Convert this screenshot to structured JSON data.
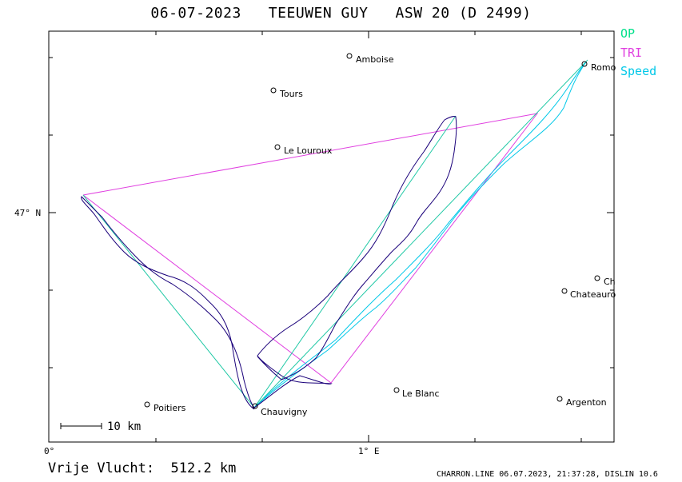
{
  "title": "06-07-2023   TEEUWEN GUY   ASW 20 (D 2499)",
  "legend": {
    "op": {
      "label": "OP",
      "color": "#00e08a"
    },
    "tri": {
      "label": "TRI",
      "color": "#e040e0"
    },
    "speed": {
      "label": "Speed",
      "color": "#00c8e8"
    }
  },
  "axes": {
    "x_labels": {
      "zero": "0°",
      "one_e": "1° E"
    },
    "y_labels": {
      "n47": "47° N"
    }
  },
  "scale_bar": {
    "label": "10 km"
  },
  "places": {
    "amboise": "Amboise",
    "tours": "Tours",
    "le_louroux": "Le Louroux",
    "romo": "Romo",
    "ch": "Ch",
    "chateauroux": "Chateauro",
    "le_blanc": "Le Blanc",
    "argenton": "Argenton",
    "poitiers": "Poitiers",
    "chauvigny": "Chauvigny"
  },
  "footer": {
    "distance": "Vrije Vlucht:  512.2 km",
    "credit": "CHARRON.LINE 06.07.2023, 21:37:28, DISLIN 10.6"
  },
  "colors": {
    "track": "#1a007a",
    "op": "#00e08a",
    "tri": "#e040e0",
    "speed": "#00c8e8"
  }
}
